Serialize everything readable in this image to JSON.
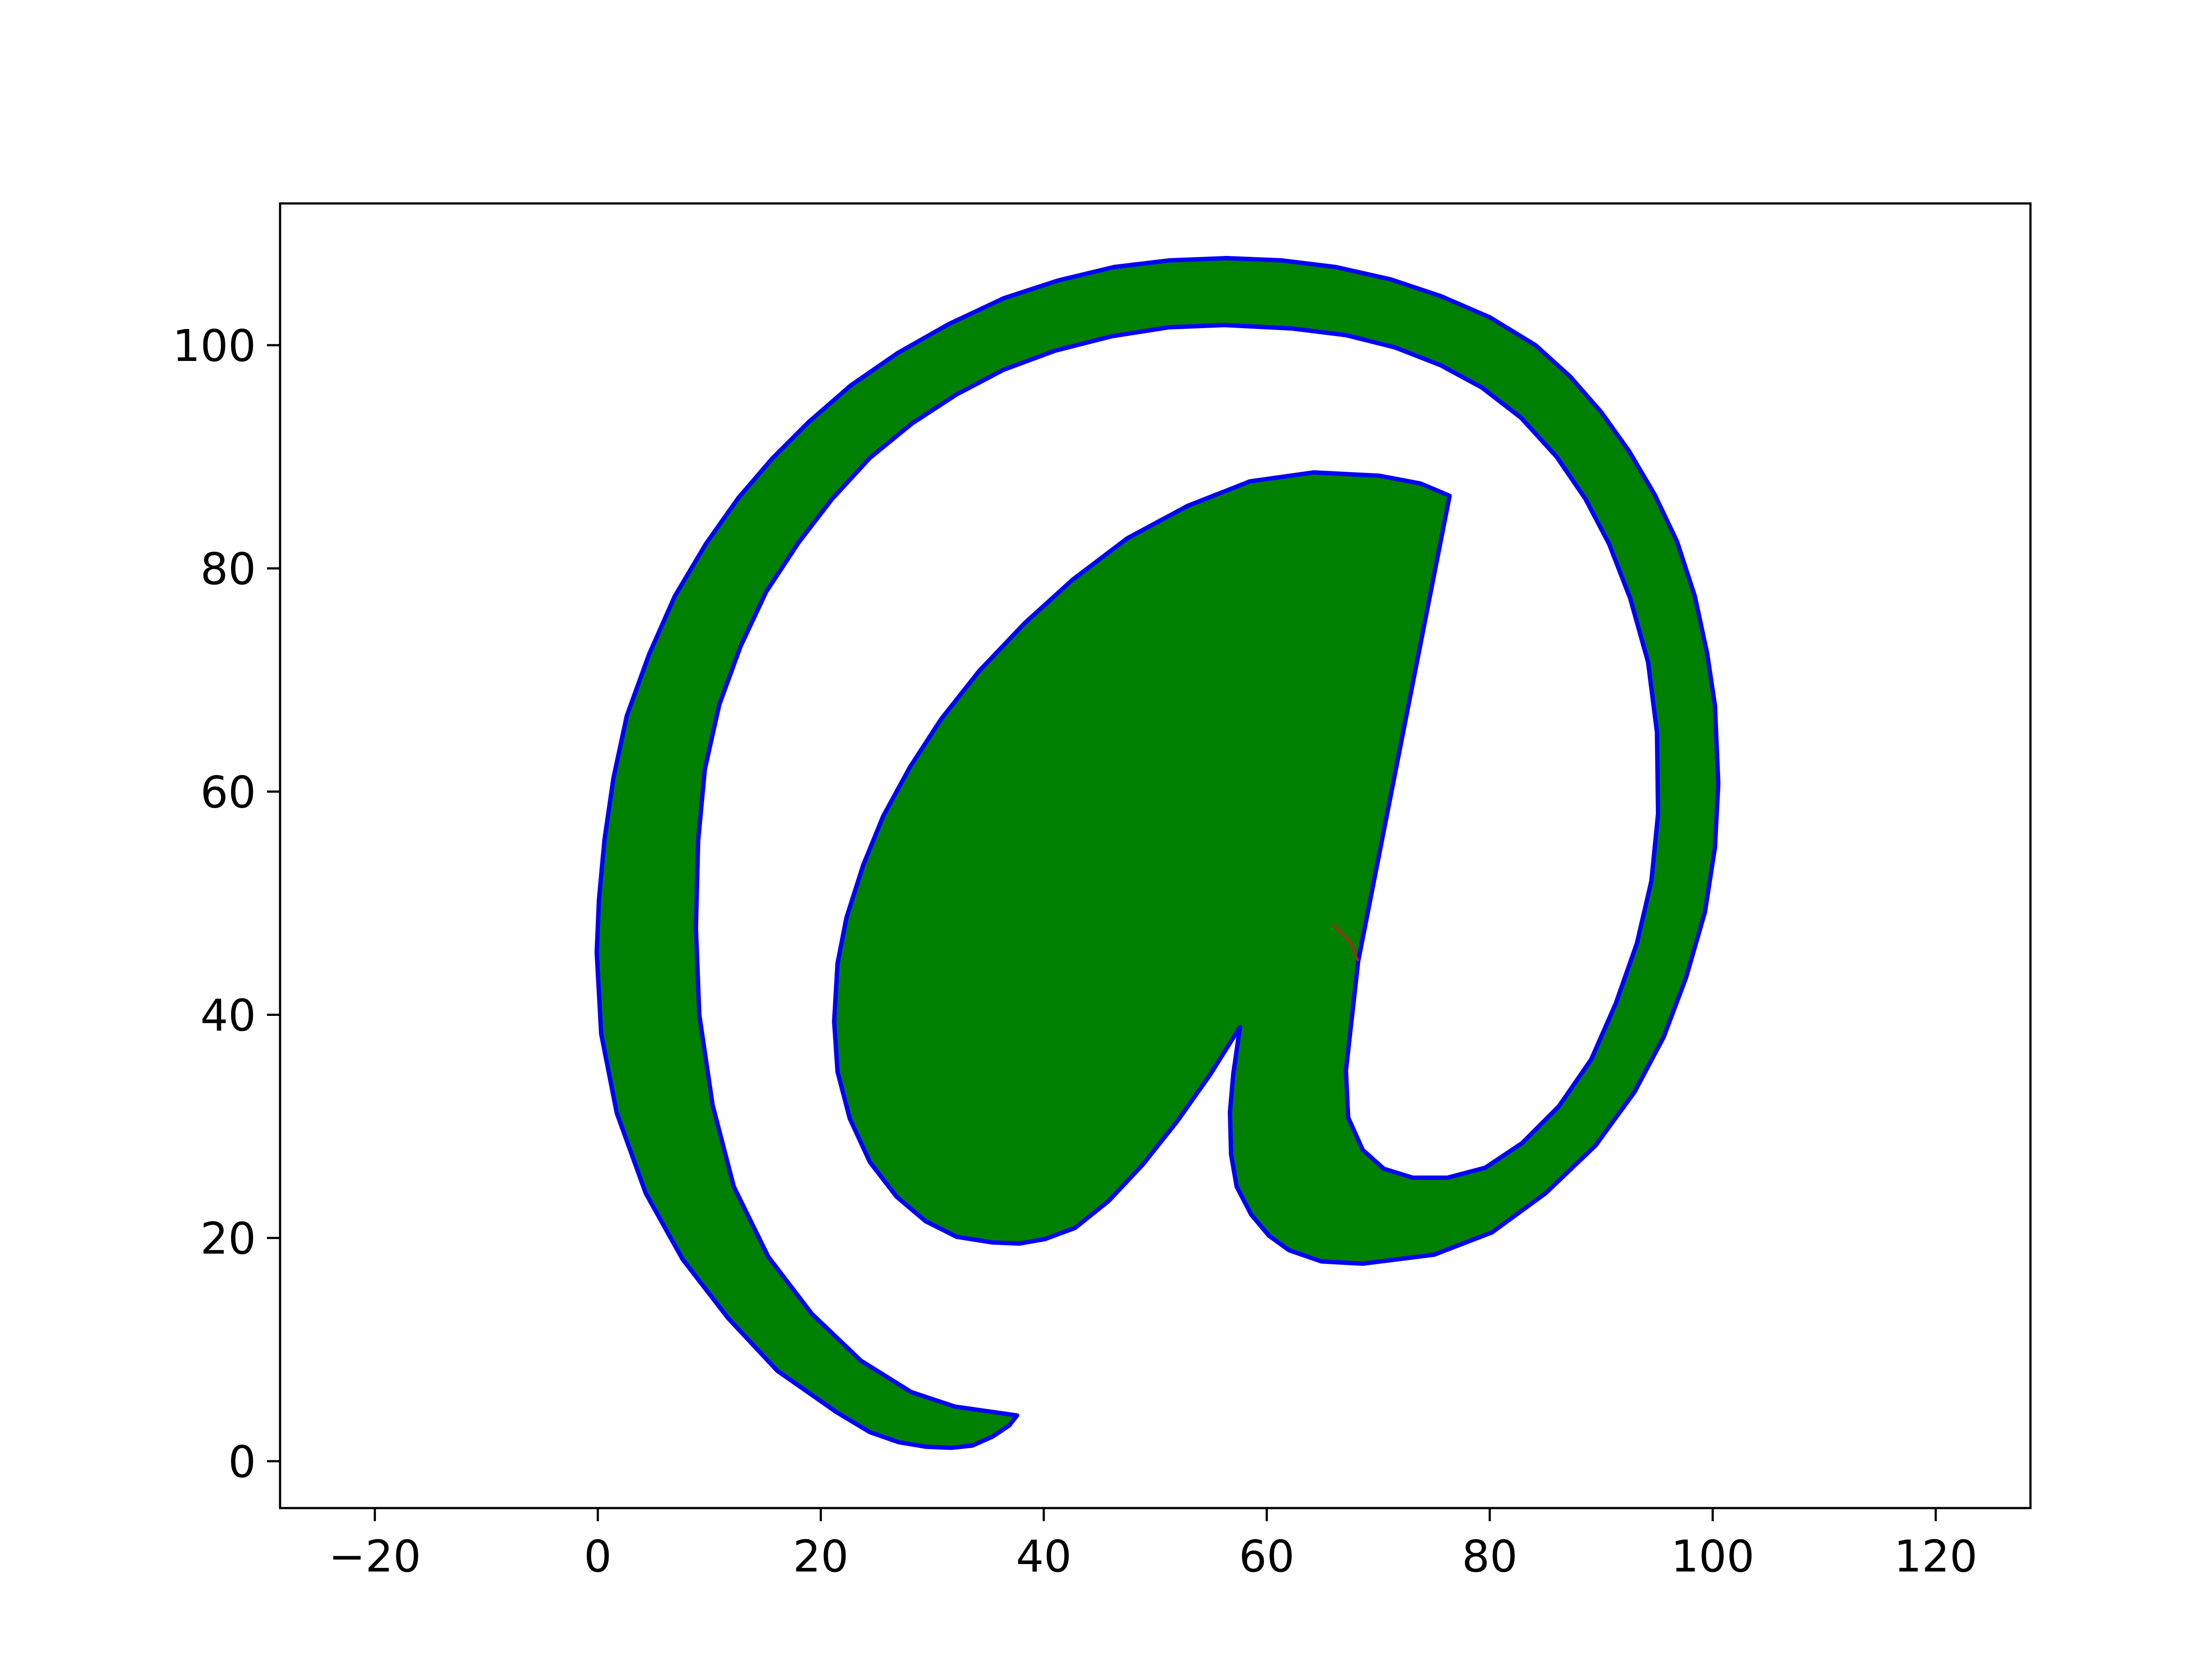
{
  "chart_data": {
    "type": "area",
    "title": "",
    "xlabel": "",
    "ylabel": "",
    "xlim": [
      -28.5,
      128.5
    ],
    "ylim": [
      -4.2,
      112.7
    ],
    "grid": false,
    "legend": "none",
    "xticks": [
      {
        "value": -20,
        "label": "−20"
      },
      {
        "value": 0,
        "label": "0"
      },
      {
        "value": 20,
        "label": "20"
      },
      {
        "value": 40,
        "label": "40"
      },
      {
        "value": 60,
        "label": "60"
      },
      {
        "value": 80,
        "label": "80"
      },
      {
        "value": 100,
        "label": "100"
      },
      {
        "value": 120,
        "label": "120"
      }
    ],
    "yticks": [
      {
        "value": 0,
        "label": "0"
      },
      {
        "value": 20,
        "label": "20"
      },
      {
        "value": 40,
        "label": "40"
      },
      {
        "value": 60,
        "label": "60"
      },
      {
        "value": 80,
        "label": "80"
      },
      {
        "value": 100,
        "label": "100"
      }
    ],
    "fill_color": "#008000",
    "edge_color": "#0000ff",
    "marker_color": "#b22222",
    "series": [
      {
        "role": "outline",
        "points": [
          [
            37.6,
            4.1
          ],
          [
            36.9,
            3.2
          ],
          [
            35.4,
            2.2
          ],
          [
            33.6,
            1.4
          ],
          [
            31.7,
            1.2
          ],
          [
            29.4,
            1.3
          ],
          [
            27.0,
            1.7
          ],
          [
            24.4,
            2.6
          ],
          [
            21.4,
            4.4
          ],
          [
            16.1,
            8.1
          ],
          [
            11.7,
            12.8
          ],
          [
            7.6,
            18.1
          ],
          [
            4.3,
            24.0
          ],
          [
            1.7,
            31.2
          ],
          [
            0.3,
            38.3
          ],
          [
            -0.1,
            45.6
          ],
          [
            0.1,
            50.3
          ],
          [
            0.6,
            55.7
          ],
          [
            1.4,
            61.2
          ],
          [
            2.6,
            66.8
          ],
          [
            4.6,
            72.3
          ],
          [
            6.9,
            77.5
          ],
          [
            9.7,
            82.2
          ],
          [
            12.6,
            86.3
          ],
          [
            15.6,
            89.8
          ],
          [
            18.9,
            93.1
          ],
          [
            22.7,
            96.4
          ],
          [
            26.9,
            99.3
          ],
          [
            31.5,
            101.9
          ],
          [
            36.4,
            104.2
          ],
          [
            41.3,
            105.8
          ],
          [
            46.3,
            107.0
          ],
          [
            51.3,
            107.6
          ],
          [
            56.4,
            107.8
          ],
          [
            61.3,
            107.6
          ],
          [
            66.2,
            107.0
          ],
          [
            71.1,
            105.9
          ],
          [
            75.6,
            104.4
          ],
          [
            80.0,
            102.5
          ],
          [
            84.1,
            100.0
          ],
          [
            87.2,
            97.2
          ],
          [
            90.0,
            94.0
          ],
          [
            92.5,
            90.5
          ],
          [
            94.8,
            86.6
          ],
          [
            96.8,
            82.4
          ],
          [
            98.4,
            77.5
          ],
          [
            99.5,
            72.4
          ],
          [
            100.2,
            67.7
          ],
          [
            100.5,
            60.7
          ],
          [
            100.2,
            55.0
          ],
          [
            99.3,
            49.2
          ],
          [
            97.6,
            43.3
          ],
          [
            95.6,
            38.0
          ],
          [
            93.0,
            33.1
          ],
          [
            89.5,
            28.3
          ],
          [
            85.0,
            24.0
          ],
          [
            80.2,
            20.5
          ],
          [
            75.0,
            18.5
          ],
          [
            68.6,
            17.7
          ],
          [
            64.9,
            17.9
          ],
          [
            62.0,
            18.9
          ],
          [
            60.2,
            20.2
          ],
          [
            58.6,
            22.1
          ],
          [
            57.3,
            24.6
          ],
          [
            56.8,
            27.5
          ],
          [
            56.7,
            31.3
          ],
          [
            57.0,
            34.7
          ],
          [
            57.6,
            38.9
          ],
          [
            54.9,
            34.6
          ],
          [
            52.0,
            30.5
          ],
          [
            48.9,
            26.6
          ],
          [
            45.8,
            23.3
          ],
          [
            42.8,
            20.9
          ],
          [
            40.1,
            19.9
          ],
          [
            37.8,
            19.5
          ],
          [
            35.4,
            19.6
          ],
          [
            32.2,
            20.1
          ],
          [
            29.4,
            21.5
          ],
          [
            26.8,
            23.7
          ],
          [
            24.4,
            26.8
          ],
          [
            22.6,
            30.7
          ],
          [
            21.5,
            34.9
          ],
          [
            21.2,
            39.4
          ],
          [
            21.5,
            44.6
          ],
          [
            22.3,
            48.7
          ],
          [
            23.8,
            53.4
          ],
          [
            25.6,
            57.8
          ],
          [
            28.0,
            62.2
          ],
          [
            30.8,
            66.5
          ],
          [
            34.2,
            70.8
          ],
          [
            38.3,
            75.1
          ],
          [
            42.6,
            79.0
          ],
          [
            47.5,
            82.7
          ],
          [
            52.9,
            85.6
          ],
          [
            58.5,
            87.8
          ],
          [
            64.2,
            88.6
          ],
          [
            70.1,
            88.3
          ],
          [
            73.8,
            87.6
          ],
          [
            76.4,
            86.5
          ],
          [
            68.2,
            44.8
          ],
          [
            67.1,
            35.0
          ],
          [
            67.3,
            30.8
          ],
          [
            68.6,
            27.9
          ],
          [
            70.5,
            26.2
          ],
          [
            73.1,
            25.4
          ],
          [
            76.2,
            25.4
          ],
          [
            79.6,
            26.3
          ],
          [
            82.9,
            28.5
          ],
          [
            86.2,
            31.8
          ],
          [
            89.1,
            36.0
          ],
          [
            91.3,
            41.0
          ],
          [
            93.2,
            46.4
          ],
          [
            94.5,
            52.0
          ],
          [
            95.1,
            58.0
          ],
          [
            95.0,
            65.3
          ],
          [
            94.2,
            71.6
          ],
          [
            92.6,
            77.3
          ],
          [
            90.7,
            82.2
          ],
          [
            88.6,
            86.2
          ],
          [
            86.0,
            90.0
          ],
          [
            82.8,
            93.5
          ],
          [
            79.3,
            96.2
          ],
          [
            75.6,
            98.2
          ],
          [
            71.5,
            99.8
          ],
          [
            67.1,
            100.9
          ],
          [
            62.2,
            101.5
          ],
          [
            56.2,
            101.8
          ],
          [
            51.2,
            101.6
          ],
          [
            46.1,
            100.8
          ],
          [
            41.0,
            99.5
          ],
          [
            36.4,
            97.8
          ],
          [
            32.2,
            95.6
          ],
          [
            28.2,
            93.0
          ],
          [
            24.4,
            89.9
          ],
          [
            21.0,
            86.2
          ],
          [
            18.0,
            82.3
          ],
          [
            15.1,
            77.9
          ],
          [
            12.8,
            73.0
          ],
          [
            10.9,
            67.8
          ],
          [
            9.6,
            62.0
          ],
          [
            9.0,
            55.6
          ],
          [
            8.8,
            47.8
          ],
          [
            9.1,
            40.0
          ],
          [
            10.3,
            31.9
          ],
          [
            12.2,
            24.6
          ],
          [
            15.3,
            18.3
          ],
          [
            19.2,
            13.2
          ],
          [
            23.6,
            9.0
          ],
          [
            28.1,
            6.2
          ],
          [
            32.0,
            4.9
          ],
          [
            37.6,
            4.1
          ]
        ]
      },
      {
        "role": "marker",
        "points": [
          [
            65.9,
            48.1
          ],
          [
            67.5,
            46.5
          ],
          [
            68.2,
            44.8
          ]
        ]
      }
    ]
  }
}
